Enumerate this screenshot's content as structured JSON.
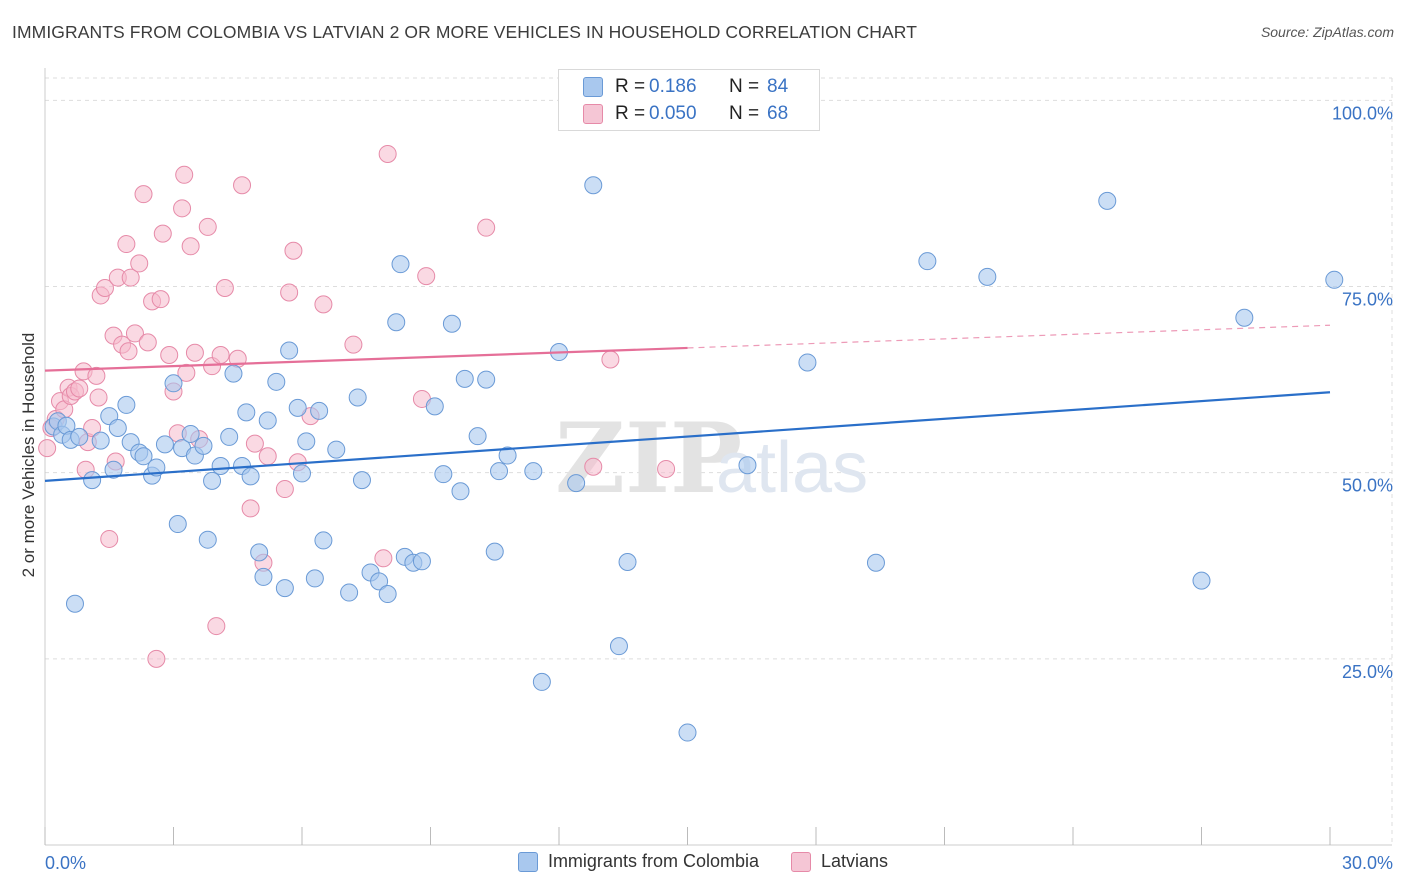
{
  "header": {
    "title": "IMMIGRANTS FROM COLOMBIA VS LATVIAN 2 OR MORE VEHICLES IN HOUSEHOLD CORRELATION CHART",
    "source": "Source: ZipAtlas.com"
  },
  "watermark": {
    "zip": "ZIP",
    "atlas": "atlas"
  },
  "legend": {
    "rows": [
      {
        "r_label": "R =",
        "r_value": "0.186",
        "n_label": "N =",
        "n_value": "84"
      },
      {
        "r_label": "R =",
        "r_value": "0.050",
        "n_label": "N =",
        "n_value": "68"
      }
    ]
  },
  "colors": {
    "blue_fill": "#a9c8ee",
    "blue_stroke": "#6a9ad6",
    "blue_line": "#2a6fc9",
    "pink_fill": "#f5b9cc",
    "pink_stroke": "#e68aa8",
    "pink_line": "#e56f98",
    "tick_label": "#3a73c4",
    "grid": "#dddddd"
  },
  "chart_data": {
    "type": "scatter",
    "title": "IMMIGRANTS FROM COLOMBIA VS LATVIAN 2 OR MORE VEHICLES IN HOUSEHOLD CORRELATION CHART",
    "xlabel": "",
    "ylabel": "2 or more Vehicles in Household",
    "xlim": [
      0,
      30
    ],
    "ylim": [
      0,
      103
    ],
    "x_tick_labels": [
      "0.0%",
      "30.0%"
    ],
    "y_ticks": [
      25,
      50,
      75,
      100
    ],
    "y_tick_labels": [
      "25.0%",
      "50.0%",
      "75.0%",
      "100.0%"
    ],
    "grid": true,
    "legend_position": "top-center",
    "series": [
      {
        "name": "Immigrants from Colombia",
        "color": "#a9c8ee",
        "trend": {
          "x": [
            0,
            30
          ],
          "y": [
            48.9,
            60.8
          ],
          "dashed_from": null
        },
        "points": [
          [
            0.2,
            56.2
          ],
          [
            0.3,
            56.9
          ],
          [
            0.4,
            55.1
          ],
          [
            0.5,
            56.3
          ],
          [
            0.6,
            54.4
          ],
          [
            0.7,
            32.4
          ],
          [
            0.8,
            54.8
          ],
          [
            1.1,
            49.0
          ],
          [
            1.3,
            54.3
          ],
          [
            1.5,
            57.6
          ],
          [
            1.6,
            50.4
          ],
          [
            1.7,
            56.0
          ],
          [
            1.9,
            59.1
          ],
          [
            2.0,
            54.1
          ],
          [
            2.2,
            52.7
          ],
          [
            2.3,
            52.2
          ],
          [
            2.5,
            49.6
          ],
          [
            2.6,
            50.7
          ],
          [
            2.8,
            53.8
          ],
          [
            3.0,
            62.0
          ],
          [
            3.1,
            43.1
          ],
          [
            3.2,
            53.3
          ],
          [
            3.4,
            55.2
          ],
          [
            3.5,
            52.3
          ],
          [
            3.7,
            53.6
          ],
          [
            3.8,
            41.0
          ],
          [
            3.9,
            48.9
          ],
          [
            4.1,
            50.9
          ],
          [
            4.3,
            54.8
          ],
          [
            4.4,
            63.3
          ],
          [
            4.6,
            50.9
          ],
          [
            4.7,
            58.1
          ],
          [
            4.8,
            49.5
          ],
          [
            5.0,
            39.3
          ],
          [
            5.1,
            36.0
          ],
          [
            5.2,
            57.0
          ],
          [
            5.4,
            62.2
          ],
          [
            5.6,
            34.5
          ],
          [
            5.7,
            66.4
          ],
          [
            5.9,
            58.7
          ],
          [
            6.0,
            49.9
          ],
          [
            6.1,
            54.2
          ],
          [
            6.3,
            35.8
          ],
          [
            6.4,
            58.3
          ],
          [
            6.5,
            40.9
          ],
          [
            6.8,
            53.1
          ],
          [
            7.1,
            33.9
          ],
          [
            7.3,
            60.1
          ],
          [
            7.4,
            49.0
          ],
          [
            7.6,
            36.6
          ],
          [
            7.8,
            35.4
          ],
          [
            8.0,
            33.7
          ],
          [
            8.2,
            70.2
          ],
          [
            8.3,
            78.0
          ],
          [
            8.4,
            38.7
          ],
          [
            8.6,
            37.9
          ],
          [
            8.8,
            38.1
          ],
          [
            9.1,
            58.9
          ],
          [
            9.3,
            49.8
          ],
          [
            9.5,
            70.0
          ],
          [
            9.7,
            47.5
          ],
          [
            9.8,
            62.6
          ],
          [
            10.1,
            54.9
          ],
          [
            10.3,
            62.5
          ],
          [
            10.5,
            39.4
          ],
          [
            10.6,
            50.2
          ],
          [
            10.8,
            52.3
          ],
          [
            11.4,
            50.2
          ],
          [
            11.6,
            21.9
          ],
          [
            12.0,
            66.2
          ],
          [
            12.4,
            48.6
          ],
          [
            12.8,
            88.6
          ],
          [
            13.4,
            26.7
          ],
          [
            13.6,
            38.0
          ],
          [
            15.0,
            15.1
          ],
          [
            16.4,
            51.0
          ],
          [
            17.8,
            64.8
          ],
          [
            19.4,
            37.9
          ],
          [
            20.6,
            78.4
          ],
          [
            22.0,
            76.3
          ],
          [
            24.8,
            86.5
          ],
          [
            27.0,
            35.5
          ],
          [
            28.0,
            70.8
          ],
          [
            30.1,
            75.9
          ]
        ]
      },
      {
        "name": "Latvians",
        "color": "#f5b9cc",
        "trend": {
          "x": [
            0,
            30
          ],
          "y": [
            63.7,
            69.8
          ],
          "dashed_from": 15
        },
        "points": [
          [
            0.05,
            53.3
          ],
          [
            0.15,
            56.0
          ],
          [
            0.25,
            57.2
          ],
          [
            0.35,
            59.6
          ],
          [
            0.45,
            58.5
          ],
          [
            0.55,
            61.4
          ],
          [
            0.6,
            60.3
          ],
          [
            0.7,
            60.9
          ],
          [
            0.8,
            61.3
          ],
          [
            0.9,
            63.6
          ],
          [
            0.95,
            50.4
          ],
          [
            1.0,
            54.1
          ],
          [
            1.1,
            56.0
          ],
          [
            1.2,
            63.0
          ],
          [
            1.25,
            60.1
          ],
          [
            1.3,
            73.8
          ],
          [
            1.4,
            74.8
          ],
          [
            1.5,
            41.1
          ],
          [
            1.6,
            68.4
          ],
          [
            1.65,
            51.5
          ],
          [
            1.7,
            76.2
          ],
          [
            1.8,
            67.2
          ],
          [
            1.9,
            80.7
          ],
          [
            1.95,
            66.3
          ],
          [
            2.0,
            76.2
          ],
          [
            2.1,
            68.7
          ],
          [
            2.2,
            78.1
          ],
          [
            2.3,
            87.4
          ],
          [
            2.4,
            67.5
          ],
          [
            2.5,
            73.0
          ],
          [
            2.6,
            25.0
          ],
          [
            2.7,
            73.3
          ],
          [
            2.75,
            82.1
          ],
          [
            2.9,
            65.8
          ],
          [
            3.0,
            60.9
          ],
          [
            3.1,
            55.3
          ],
          [
            3.2,
            85.5
          ],
          [
            3.25,
            90.0
          ],
          [
            3.3,
            63.4
          ],
          [
            3.4,
            80.4
          ],
          [
            3.5,
            66.1
          ],
          [
            3.6,
            54.5
          ],
          [
            3.8,
            83.0
          ],
          [
            3.9,
            64.3
          ],
          [
            4.0,
            29.4
          ],
          [
            4.1,
            65.8
          ],
          [
            4.2,
            74.8
          ],
          [
            4.5,
            65.3
          ],
          [
            4.6,
            88.6
          ],
          [
            4.8,
            45.2
          ],
          [
            4.9,
            53.9
          ],
          [
            5.1,
            37.9
          ],
          [
            5.2,
            52.2
          ],
          [
            5.6,
            47.8
          ],
          [
            5.7,
            74.2
          ],
          [
            5.8,
            79.8
          ],
          [
            5.9,
            51.4
          ],
          [
            6.2,
            57.6
          ],
          [
            6.5,
            72.6
          ],
          [
            7.2,
            67.2
          ],
          [
            8.0,
            92.8
          ],
          [
            8.8,
            59.9
          ],
          [
            8.9,
            76.4
          ],
          [
            10.3,
            82.9
          ],
          [
            12.8,
            50.8
          ],
          [
            13.2,
            65.2
          ],
          [
            14.5,
            50.5
          ],
          [
            7.9,
            38.5
          ]
        ]
      }
    ]
  },
  "bottom_legend": [
    {
      "label": "Immigrants from Colombia"
    },
    {
      "label": "Latvians"
    }
  ]
}
